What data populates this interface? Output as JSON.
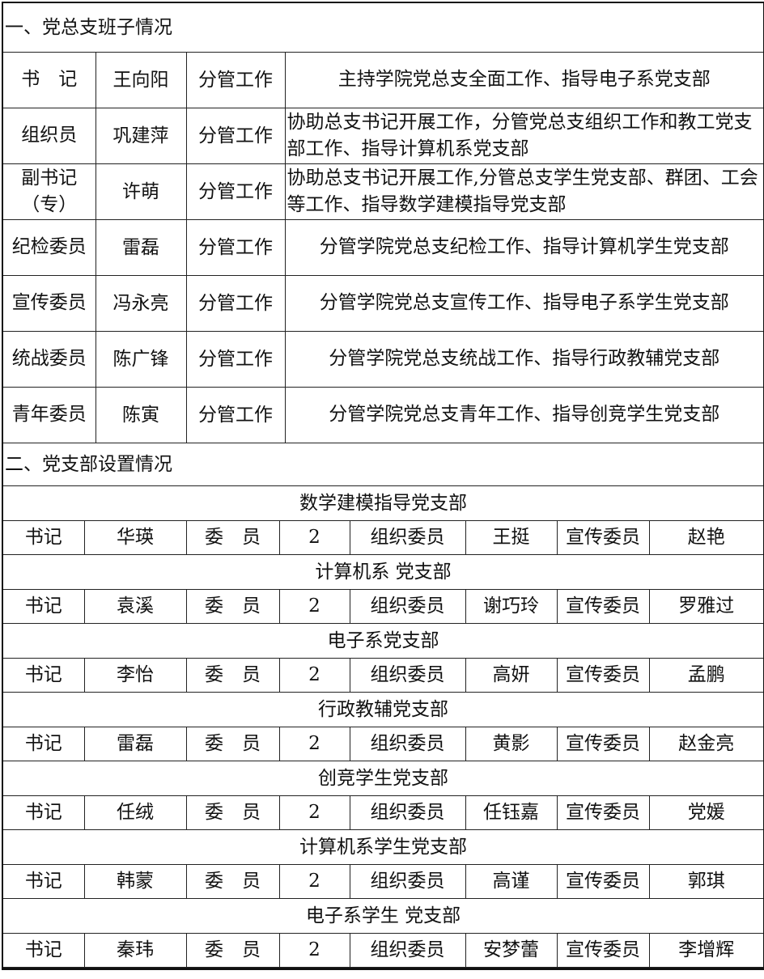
{
  "section1": {
    "title": "一、党总支班子情况",
    "members": [
      {
        "role": "书　记",
        "name": "王向阳",
        "type": "分管工作",
        "duty": "主持学院党总支全面工作、指导电子系党支部",
        "align": "center"
      },
      {
        "role": "组织员",
        "name": "巩建萍",
        "type": "分管工作",
        "duty": "协助总支书记开展工作，分管党总支组织工作和教工党支部工作、指导计算机系党支部",
        "align": "left"
      },
      {
        "role": "副书记（专）",
        "name": "许萌",
        "type": "分管工作",
        "duty": "协助总支书记开展工作,分管总支学生党支部、群团、工会等工作、指导数学建模指导党支部",
        "align": "left"
      },
      {
        "role": "纪检委员",
        "name": "雷磊",
        "type": "分管工作",
        "duty": "分管学院党总支纪检工作、指导计算机学生党支部",
        "align": "center"
      },
      {
        "role": "宣传委员",
        "name": "冯永亮",
        "type": "分管工作",
        "duty": "分管学院党总支宣传工作、指导电子系学生党支部",
        "align": "center"
      },
      {
        "role": "统战委员",
        "name": "陈广锋",
        "type": "分管工作",
        "duty": "分管学院党总支统战工作、指导行政教辅党支部",
        "align": "center"
      },
      {
        "role": "青年委员",
        "name": "陈寅",
        "type": "分管工作",
        "duty": "分管学院党总支青年工作、指导创竞学生党支部",
        "align": "center"
      }
    ]
  },
  "section2": {
    "title": "二、党支部设置情况",
    "branches": [
      {
        "name": "数学建模指导党支部",
        "secretary_label": "书记",
        "secretary": "华瑛",
        "committee_label": "委　员",
        "committee_count": "2",
        "org_label": "组织委员",
        "org": "王挺",
        "pub_label": "宣传委员",
        "pub": "赵艳"
      },
      {
        "name": "计算机系 党支部",
        "secretary_label": "书记",
        "secretary": "袁溪",
        "committee_label": "委　员",
        "committee_count": "2",
        "org_label": "组织委员",
        "org": "谢巧玲",
        "pub_label": "宣传委员",
        "pub": "罗雅过"
      },
      {
        "name": "电子系党支部",
        "secretary_label": "书记",
        "secretary": "李怡",
        "committee_label": "委　员",
        "committee_count": "2",
        "org_label": "组织委员",
        "org": "高妍",
        "pub_label": "宣传委员",
        "pub": "孟鹏"
      },
      {
        "name": "行政教辅党支部",
        "secretary_label": "书记",
        "secretary": "雷磊",
        "committee_label": "委　员",
        "committee_count": "2",
        "org_label": "组织委员",
        "org": "黄影",
        "pub_label": "宣传委员",
        "pub": "赵金亮"
      },
      {
        "name": "创竞学生党支部",
        "secretary_label": "书记",
        "secretary": "任绒",
        "committee_label": "委　员",
        "committee_count": "2",
        "org_label": "组织委员",
        "org": "任钰嘉",
        "pub_label": "宣传委员",
        "pub": "党媛"
      },
      {
        "name": "计算机系学生党支部",
        "secretary_label": "书记",
        "secretary": "韩蒙",
        "committee_label": "委　员",
        "committee_count": "2",
        "org_label": "组织委员",
        "org": "高谨",
        "pub_label": "宣传委员",
        "pub": "郭琪"
      },
      {
        "name": "电子系学生 党支部",
        "secretary_label": "书记",
        "secretary": "秦玮",
        "committee_label": "委　员",
        "committee_count": "2",
        "org_label": "组织委员",
        "org": "安梦蕾",
        "pub_label": "宣传委员",
        "pub": "李增辉"
      }
    ]
  }
}
